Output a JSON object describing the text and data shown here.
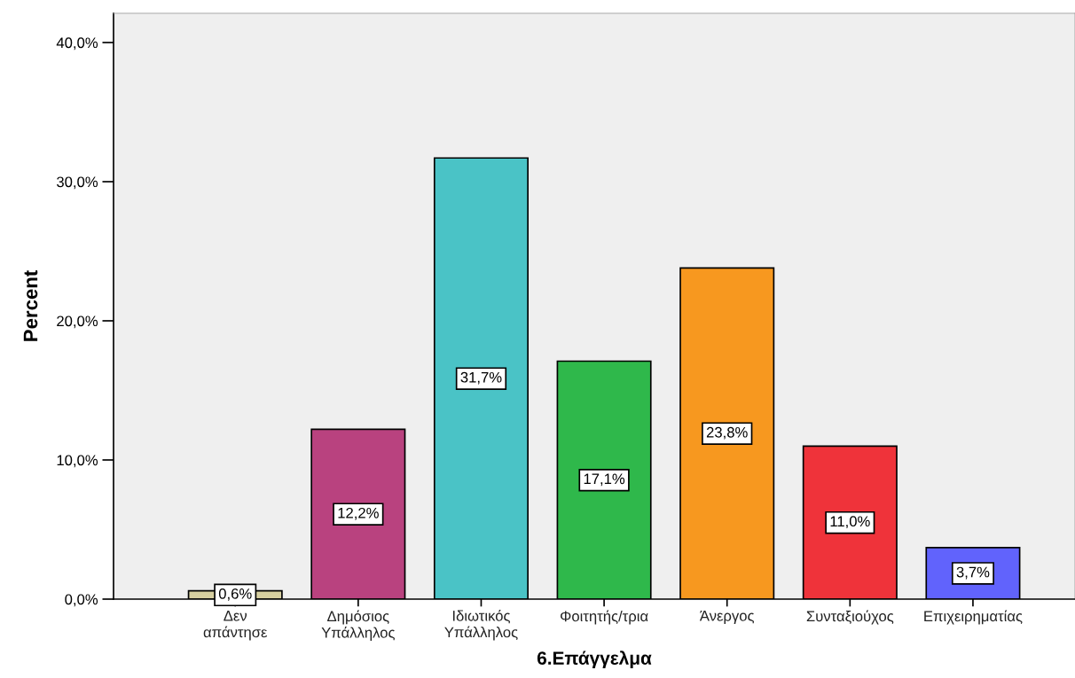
{
  "chart_data": {
    "type": "bar",
    "xlabel": "6.Επάγγελμα",
    "ylabel": "Percent",
    "categories": [
      "Δεν\nαπάντησε",
      "Δημόσιος\nΥπάλληλος",
      "Ιδιωτικός\nΥπάλληλος",
      "Φοιτητής/τρια",
      "Άνεργος",
      "Συνταξιούχος",
      "Επιχειρηματίας"
    ],
    "values": [
      0.6,
      12.2,
      31.7,
      17.1,
      23.8,
      11.0,
      3.7
    ],
    "colors": [
      "#d6cfa0",
      "#b9427f",
      "#4ac3c6",
      "#2fb84b",
      "#f7981f",
      "#ef333a",
      "#6163fc"
    ],
    "value_labels": [
      "0,6%",
      "12,2%",
      "31,7%",
      "17,1%",
      "23,8%",
      "11,0%",
      "3,7%"
    ],
    "ylim": [
      0,
      42.1
    ],
    "yticks": [
      {
        "value": 0,
        "label": "0,0%"
      },
      {
        "value": 10,
        "label": "10,0%"
      },
      {
        "value": 20,
        "label": "20,0%"
      },
      {
        "value": 30,
        "label": "30,0%"
      },
      {
        "value": 40,
        "label": "40,0%"
      }
    ],
    "grid": false,
    "legend": false
  }
}
